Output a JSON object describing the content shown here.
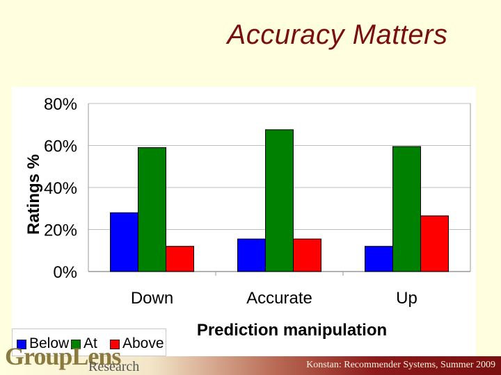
{
  "slide": {
    "title": "Accuracy Matters",
    "footer": "Konstan: Recommender Systems, Summer 2009",
    "logo_text": "GroupLens",
    "logo_sub": "Research"
  },
  "colors": {
    "title": "#7a0e0e",
    "background": "#ffffe0",
    "below": "#0000ff",
    "at": "#008000",
    "above": "#ff0000"
  },
  "chart_data": {
    "type": "bar",
    "title": "",
    "xlabel": "Prediction manipulation",
    "ylabel": "Ratings %",
    "categories": [
      "Down",
      "Accurate",
      "Up"
    ],
    "yticks": [
      "0%",
      "20%",
      "40%",
      "60%",
      "80%"
    ],
    "ylim": [
      0,
      80
    ],
    "grid": true,
    "legend_position": "bottom-left",
    "series": [
      {
        "name": "Below",
        "color": "#0000ff",
        "values": [
          28,
          15.5,
          12
        ]
      },
      {
        "name": "At",
        "color": "#008000",
        "values": [
          59,
          67.5,
          59.5
        ]
      },
      {
        "name": "Above",
        "color": "#ff0000",
        "values": [
          12,
          15.5,
          26.5
        ]
      }
    ]
  }
}
